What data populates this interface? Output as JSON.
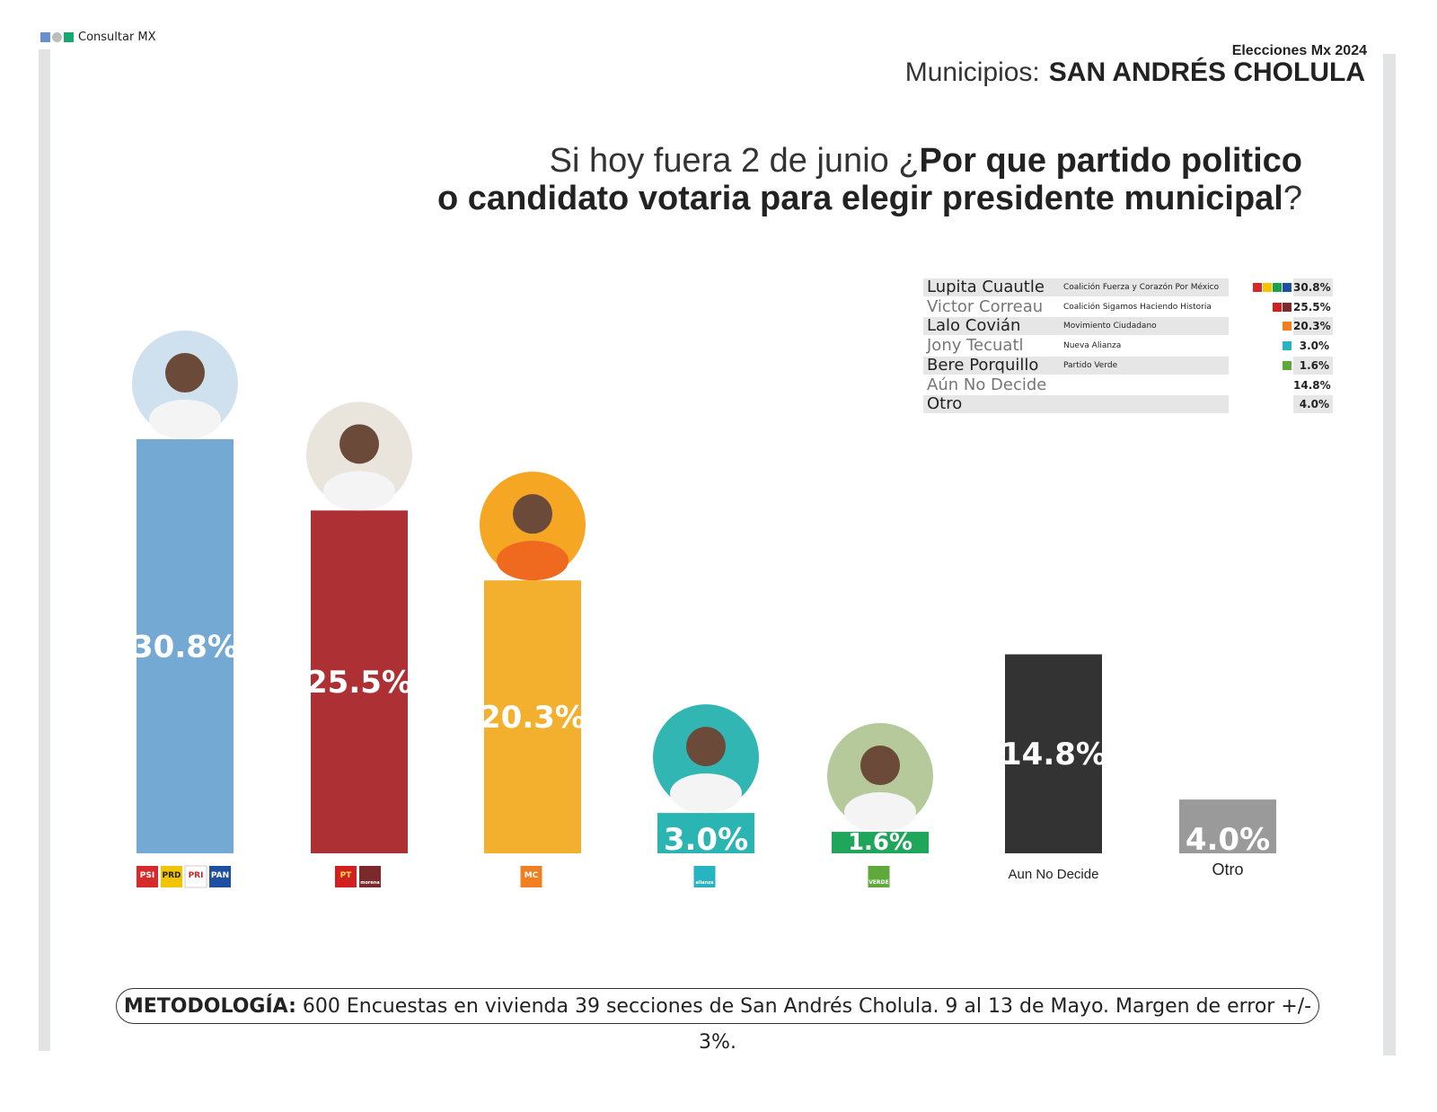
{
  "brand": {
    "name": "Consultar MX",
    "colors": [
      "#6a8fd0",
      "#bdbdbd",
      "#16a870"
    ]
  },
  "header": {
    "supertitle": "Elecciones Mx 2024",
    "municipio_label": "Municipios:",
    "municipio_name": "SAN ANDRÉS CHOLULA"
  },
  "question": {
    "line1_light": "Si hoy fuera 2 de junio ¿",
    "line1_bold": "Por que partido politico",
    "line2_bold": "o candidato votaria para elegir presidente municipal",
    "line2_end": "?"
  },
  "legend": [
    {
      "name": "Lupita Cuautle",
      "party": "Coalición Fuerza y Corazón Por México",
      "value": "30.8%",
      "icons": [
        "#d62a2a",
        "#f2c500",
        "#16a34a",
        "#1f4fa0"
      ]
    },
    {
      "name": "Victor Correau",
      "party": "Coalición Sigamos Haciendo Historia",
      "value": "25.5%",
      "icons": [
        "#d21f1f",
        "#7a2a2a"
      ]
    },
    {
      "name": "Lalo Covián",
      "party": "Movimiento Ciudadano",
      "value": "20.3%",
      "icons": [
        "#f07f22"
      ]
    },
    {
      "name": "Jony Tecuatl",
      "party": "Nueva Alianza",
      "value": "3.0%",
      "icons": [
        "#27b3c0"
      ]
    },
    {
      "name": "Bere Porquillo",
      "party": "Partido Verde",
      "value": "1.6%",
      "icons": [
        "#5fa83a"
      ]
    },
    {
      "name": "Aún No Decide",
      "party": "",
      "value": "14.8%",
      "icons": []
    },
    {
      "name": "Otro",
      "party": "",
      "value": "4.0%",
      "icons": []
    }
  ],
  "chart_data": {
    "type": "bar",
    "categories": [
      "Lupita Cuautle",
      "Victor Correau",
      "Lalo Covián",
      "Jony Tecuatl",
      "Bere Porquillo",
      "Aun No Decide",
      "Otro"
    ],
    "values": [
      30.8,
      25.5,
      20.3,
      3.0,
      1.6,
      14.8,
      4.0
    ],
    "data_labels": [
      "30.8%",
      "25.5%",
      "20.3%",
      "3.0%",
      "1.6%",
      "14.8%",
      "4.0%"
    ],
    "x_tick_labels": [
      "",
      "",
      "",
      "",
      "",
      "Aun No Decide",
      "Otro"
    ],
    "party_logos": [
      [
        "PSI",
        "PRD",
        "PRI",
        "PAN"
      ],
      [
        "PT",
        "morena"
      ],
      [
        "MC"
      ],
      [
        "alianza"
      ],
      [
        "VERDE"
      ],
      [],
      []
    ],
    "colors": [
      "#74a9d4",
      "#ad3034",
      "#f3b02f",
      "#2ab5b3",
      "#1fa65a",
      "#333333",
      "#9a9a9a"
    ],
    "has_photo": [
      true,
      true,
      true,
      true,
      true,
      false,
      false
    ],
    "title": "",
    "xlabel": "",
    "ylabel": "",
    "ylim": [
      0,
      31
    ],
    "grid": false
  },
  "methodology": {
    "label": "METODOLOGÍA:",
    "text": " 600 Encuestas en vivienda 39 secciones de San Andrés Cholula. 9 al 13 de Mayo. Margen de error +/- 3%."
  }
}
